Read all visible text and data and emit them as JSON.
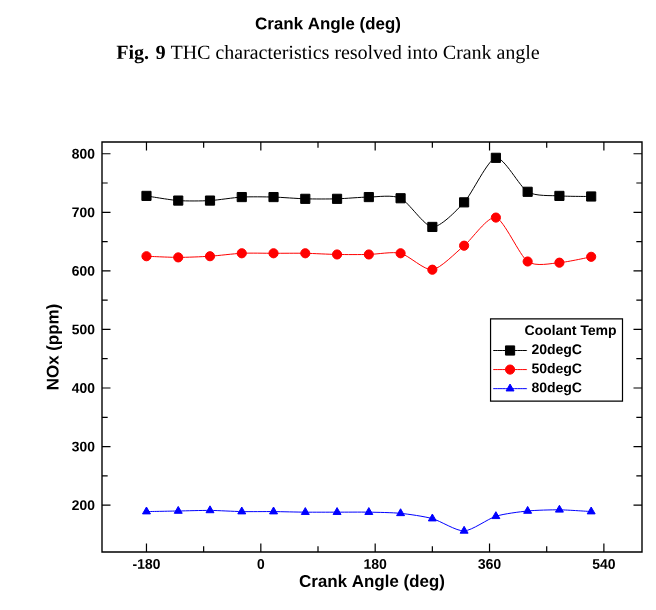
{
  "chart_data": {
    "type": "line",
    "xlabel": "Crank Angle (deg)",
    "ylabel": "NOx (ppm)",
    "legend_title": "Coolant Temp",
    "x": [
      -180,
      -130,
      -80,
      -30,
      20,
      70,
      120,
      170,
      220,
      270,
      320,
      370,
      420,
      470,
      520
    ],
    "series": [
      {
        "name": "20degC",
        "color": "#000000",
        "marker": "square",
        "values": [
          728,
          720,
          720,
          726,
          726,
          723,
          723,
          726,
          724,
          675,
          717,
          793,
          735,
          728,
          727
        ]
      },
      {
        "name": "50degC",
        "color": "#ff0000",
        "marker": "circle",
        "values": [
          625,
          623,
          625,
          630,
          630,
          630,
          628,
          628,
          630,
          602,
          643,
          691,
          616,
          614,
          624
        ]
      },
      {
        "name": "80degC",
        "color": "#0000ff",
        "marker": "triangle",
        "values": [
          189,
          190,
          191,
          189,
          189,
          188,
          188,
          188,
          186,
          177,
          156,
          181,
          190,
          192,
          189
        ]
      }
    ],
    "xlim": [
      -250,
      600
    ],
    "xticks": [
      -180,
      0,
      180,
      360,
      540
    ],
    "ylim": [
      120,
      820
    ],
    "yticks": [
      200,
      300,
      400,
      500,
      600,
      700,
      800
    ],
    "grid": false,
    "legend": "right",
    "annotations": [
      "Crank Angle (deg)",
      "**Fig. 9** THC characteristics resolved into Crank angle"
    ]
  }
}
